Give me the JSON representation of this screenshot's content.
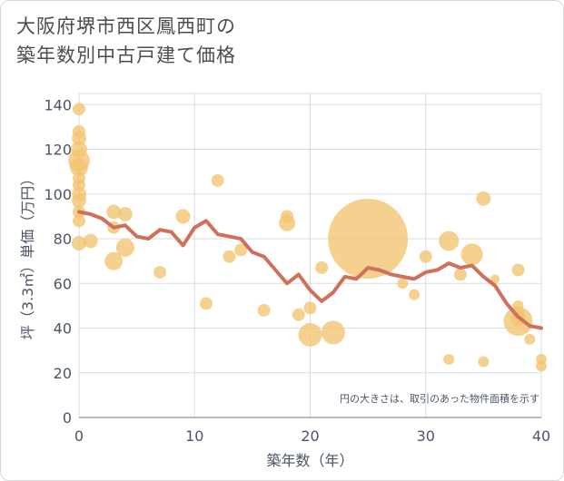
{
  "title_lines": [
    "大阪府堺市西区鳳西町の",
    "築年数別中古戸建て価格"
  ],
  "chart_data": {
    "type": "scatter",
    "title": "大阪府堺市西区鳳西町の築年数別中古戸建て価格",
    "xlabel": "築年数（年）",
    "ylabel": "坪（3.3㎡）単価（万円）",
    "xlim": [
      0,
      40
    ],
    "ylim": [
      0,
      145
    ],
    "x_ticks": [
      "0",
      "10",
      "20",
      "30",
      "40"
    ],
    "y_ticks": [
      "0",
      "20",
      "40",
      "60",
      "80",
      "100",
      "120",
      "140"
    ],
    "annotation": "円の大きさは、取引のあった物件面積を示す",
    "grid": true,
    "colors": {
      "bubble": "#f2c46f",
      "line": "#d0705a",
      "grid": "#d5dde6",
      "text": "#4a5566"
    },
    "bubbles": [
      {
        "x": 0,
        "y": 138,
        "s": 7
      },
      {
        "x": 0,
        "y": 128,
        "s": 7
      },
      {
        "x": 0,
        "y": 125,
        "s": 8
      },
      {
        "x": 0,
        "y": 120,
        "s": 9
      },
      {
        "x": 0,
        "y": 115,
        "s": 12
      },
      {
        "x": 0,
        "y": 112,
        "s": 10
      },
      {
        "x": 0,
        "y": 107,
        "s": 7
      },
      {
        "x": 0,
        "y": 104,
        "s": 7
      },
      {
        "x": 0,
        "y": 100,
        "s": 8
      },
      {
        "x": 0,
        "y": 97,
        "s": 8
      },
      {
        "x": 0,
        "y": 92,
        "s": 7
      },
      {
        "x": 0,
        "y": 88,
        "s": 7
      },
      {
        "x": 0,
        "y": 78,
        "s": 8
      },
      {
        "x": 1,
        "y": 79,
        "s": 8
      },
      {
        "x": 3,
        "y": 92,
        "s": 8
      },
      {
        "x": 3,
        "y": 85,
        "s": 7
      },
      {
        "x": 4,
        "y": 91,
        "s": 8
      },
      {
        "x": 4,
        "y": 76,
        "s": 10
      },
      {
        "x": 3,
        "y": 70,
        "s": 10
      },
      {
        "x": 7,
        "y": 65,
        "s": 7
      },
      {
        "x": 9,
        "y": 90,
        "s": 8
      },
      {
        "x": 11,
        "y": 51,
        "s": 7
      },
      {
        "x": 12,
        "y": 106,
        "s": 7
      },
      {
        "x": 13,
        "y": 72,
        "s": 7
      },
      {
        "x": 14,
        "y": 75,
        "s": 7
      },
      {
        "x": 16,
        "y": 48,
        "s": 7
      },
      {
        "x": 18,
        "y": 90,
        "s": 7
      },
      {
        "x": 18,
        "y": 87,
        "s": 9
      },
      {
        "x": 19,
        "y": 46,
        "s": 7
      },
      {
        "x": 20,
        "y": 49,
        "s": 7
      },
      {
        "x": 20,
        "y": 37,
        "s": 13
      },
      {
        "x": 21,
        "y": 67,
        "s": 7
      },
      {
        "x": 22,
        "y": 38,
        "s": 13
      },
      {
        "x": 25,
        "y": 80,
        "s": 44
      },
      {
        "x": 28,
        "y": 60,
        "s": 6
      },
      {
        "x": 29,
        "y": 55,
        "s": 6
      },
      {
        "x": 30,
        "y": 72,
        "s": 7
      },
      {
        "x": 32,
        "y": 79,
        "s": 11
      },
      {
        "x": 32,
        "y": 26,
        "s": 6
      },
      {
        "x": 33,
        "y": 64,
        "s": 7
      },
      {
        "x": 34,
        "y": 73,
        "s": 12
      },
      {
        "x": 35,
        "y": 98,
        "s": 8
      },
      {
        "x": 35,
        "y": 25,
        "s": 6
      },
      {
        "x": 36,
        "y": 62,
        "s": 5
      },
      {
        "x": 38,
        "y": 66,
        "s": 7
      },
      {
        "x": 38,
        "y": 50,
        "s": 6
      },
      {
        "x": 38,
        "y": 47,
        "s": 7
      },
      {
        "x": 38,
        "y": 43,
        "s": 16
      },
      {
        "x": 38,
        "y": 44,
        "s": 8
      },
      {
        "x": 39,
        "y": 35,
        "s": 6
      },
      {
        "x": 40,
        "y": 26,
        "s": 6
      },
      {
        "x": 40,
        "y": 23,
        "s": 6
      }
    ],
    "trend_line": {
      "x": [
        0,
        1,
        2,
        3,
        4,
        5,
        6,
        7,
        8,
        9,
        10,
        11,
        12,
        13,
        14,
        15,
        16,
        17,
        18,
        19,
        20,
        21,
        22,
        23,
        24,
        25,
        26,
        27,
        28,
        29,
        30,
        31,
        32,
        33,
        34,
        35,
        36,
        37,
        38,
        39,
        40
      ],
      "y": [
        92,
        91,
        89,
        85,
        86,
        81,
        80,
        84,
        83,
        77,
        85,
        88,
        82,
        81,
        80,
        74,
        72,
        66,
        60,
        64,
        57,
        52,
        56,
        63,
        62,
        67,
        66,
        64,
        63,
        62,
        65,
        66,
        69,
        67,
        68,
        63,
        59,
        51,
        45,
        41,
        40
      ]
    }
  }
}
